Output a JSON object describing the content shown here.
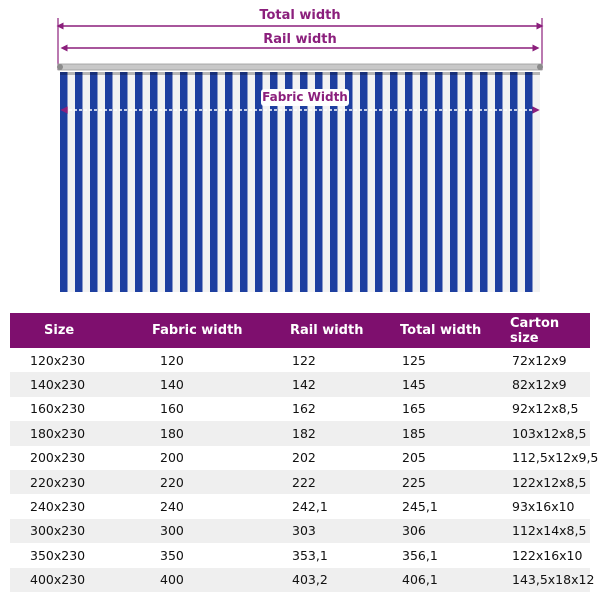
{
  "diagram": {
    "total_width_label": "Total width",
    "rail_width_label": "Rail width",
    "fabric_width_label": "Fabric Width",
    "stripe_colors": [
      "#1e3fa0",
      "#f2f2f2"
    ],
    "accent_color": "#8b1f7c"
  },
  "table": {
    "headers": [
      "Size",
      "Fabric width",
      "Rail width",
      "Total width",
      "Carton size"
    ],
    "header_color": "#7e0f6e",
    "rows": [
      [
        "120x230",
        "120",
        "122",
        "125",
        "72x12x9"
      ],
      [
        "140x230",
        "140",
        "142",
        "145",
        "82x12x9"
      ],
      [
        "160x230",
        "160",
        "162",
        "165",
        "92x12x8,5"
      ],
      [
        "180x230",
        "180",
        "182",
        "185",
        "103x12x8,5"
      ],
      [
        "200x230",
        "200",
        "202",
        "205",
        "112,5x12x9,5"
      ],
      [
        "220x230",
        "220",
        "222",
        "225",
        "122x12x8,5"
      ],
      [
        "240x230",
        "240",
        "242,1",
        "245,1",
        "93x16x10"
      ],
      [
        "300x230",
        "300",
        "303",
        "306",
        "112x14x8,5"
      ],
      [
        "350x230",
        "350",
        "353,1",
        "356,1",
        "122x16x10"
      ],
      [
        "400x230",
        "400",
        "403,2",
        "406,1",
        "143,5x18x12"
      ]
    ]
  }
}
